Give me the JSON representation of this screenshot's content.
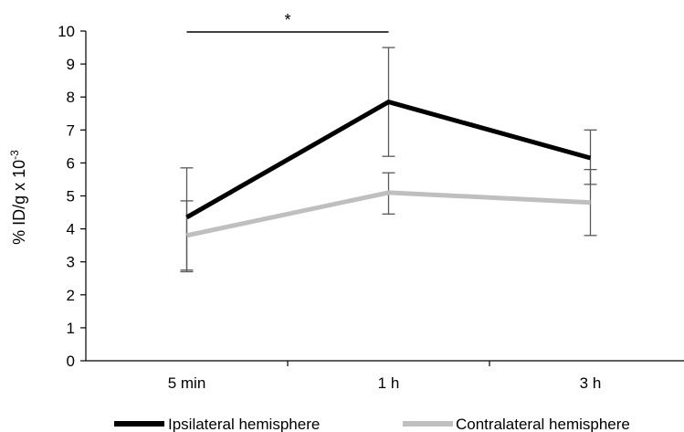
{
  "chart_data": {
    "type": "line",
    "categories": [
      "5 min",
      "1 h",
      "3 h"
    ],
    "ylabel": "% ID/g x 10",
    "ylabel_superscript": "-3",
    "ylim": [
      0,
      10
    ],
    "yticks": [
      0,
      1,
      2,
      3,
      4,
      5,
      6,
      7,
      8,
      9,
      10
    ],
    "grid": false,
    "legend_position": "bottom",
    "series": [
      {
        "name": "Ipsilateral hemisphere",
        "color": "#000000",
        "values": [
          4.35,
          7.85,
          6.15
        ],
        "error_low": [
          2.7,
          6.2,
          5.35
        ],
        "error_high": [
          5.85,
          9.5,
          7.0
        ]
      },
      {
        "name": "Contralateral hemisphere",
        "color": "#bfbfbf",
        "values": [
          3.8,
          5.1,
          4.8
        ],
        "error_low": [
          2.75,
          4.45,
          3.8
        ],
        "error_high": [
          4.85,
          5.7,
          5.8
        ]
      }
    ],
    "annotations": [
      {
        "text": "*",
        "from_category": "5 min",
        "to_category": "1 h"
      }
    ]
  }
}
